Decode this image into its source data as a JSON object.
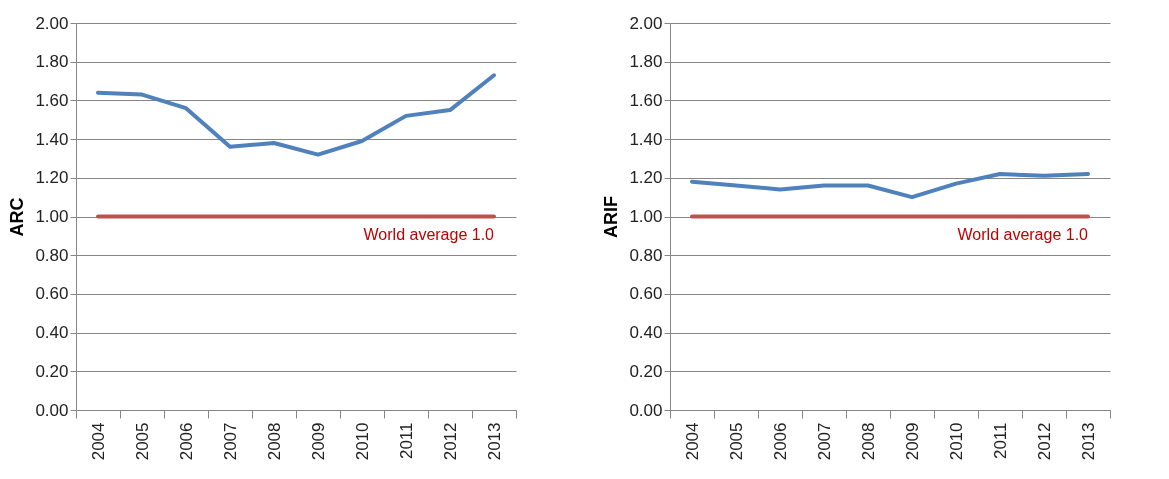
{
  "chart_data": [
    {
      "type": "line",
      "ylabel": "ARC",
      "categories": [
        "2004",
        "2005",
        "2006",
        "2007",
        "2008",
        "2009",
        "2010",
        "2011",
        "2012",
        "2013"
      ],
      "series": [
        {
          "color": "#4f81bd",
          "values": [
            1.64,
            1.63,
            1.56,
            1.36,
            1.38,
            1.32,
            1.39,
            1.52,
            1.55,
            1.73
          ]
        }
      ],
      "ylim": [
        0,
        2
      ],
      "yticks": [
        {
          "value": 0,
          "label": "0.00"
        },
        {
          "value": 0.2,
          "label": "0.20"
        },
        {
          "value": 0.4,
          "label": "0.40"
        },
        {
          "value": 0.6,
          "label": "0.60"
        },
        {
          "value": 0.8,
          "label": "0.80"
        },
        {
          "value": 1,
          "label": "1.00"
        },
        {
          "value": 1.2,
          "label": "1.20"
        },
        {
          "value": 1.4,
          "label": "1.40"
        },
        {
          "value": 1.6,
          "label": "1.60"
        },
        {
          "value": 1.8,
          "label": "1.80"
        },
        {
          "value": 2,
          "label": "2.00"
        }
      ],
      "grid": "y",
      "ref_lines": [
        {
          "axis": "y",
          "value": 1.0,
          "label": "World average 1.0",
          "color": "#c0504d"
        }
      ]
    },
    {
      "type": "line",
      "ylabel": "ARIF",
      "categories": [
        "2004",
        "2005",
        "2006",
        "2007",
        "2008",
        "2009",
        "2010",
        "2011",
        "2012",
        "2013"
      ],
      "series": [
        {
          "color": "#4f81bd",
          "values": [
            1.18,
            1.16,
            1.14,
            1.16,
            1.16,
            1.1,
            1.17,
            1.22,
            1.21,
            1.22
          ]
        }
      ],
      "ylim": [
        0,
        2
      ],
      "yticks": [
        {
          "value": 0,
          "label": "0.00"
        },
        {
          "value": 0.2,
          "label": "0.20"
        },
        {
          "value": 0.4,
          "label": "0.40"
        },
        {
          "value": 0.6,
          "label": "0.60"
        },
        {
          "value": 0.8,
          "label": "0.80"
        },
        {
          "value": 1,
          "label": "1.00"
        },
        {
          "value": 1.2,
          "label": "1.20"
        },
        {
          "value": 1.4,
          "label": "1.40"
        },
        {
          "value": 1.6,
          "label": "1.60"
        },
        {
          "value": 1.8,
          "label": "1.80"
        },
        {
          "value": 2,
          "label": "2.00"
        }
      ],
      "grid": "y",
      "ref_lines": [
        {
          "axis": "y",
          "value": 1.0,
          "label": "World average 1.0",
          "color": "#c0504d"
        }
      ]
    }
  ]
}
